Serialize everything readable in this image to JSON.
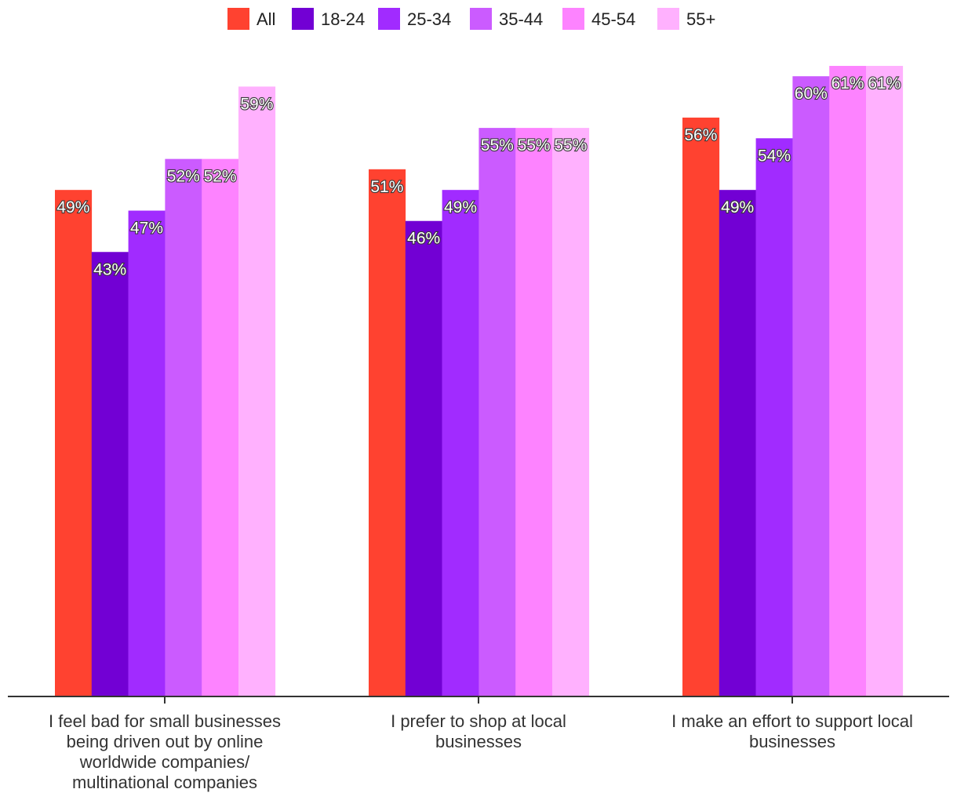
{
  "chart_data": {
    "type": "bar",
    "title": "",
    "xlabel": "",
    "ylabel": "",
    "ylim": [
      0,
      61
    ],
    "legend_position": "top-center",
    "grid": false,
    "categories": [
      [
        "I feel bad for small businesses",
        "being driven out by online",
        "worldwide companies/",
        "multinational companies"
      ],
      [
        "I prefer to shop at local",
        "businesses"
      ],
      [
        "I make an effort to support local",
        "businesses"
      ]
    ],
    "series": [
      {
        "name": "All",
        "color": "#ff4230",
        "values": [
          49,
          51,
          56
        ],
        "labels": [
          "49%",
          "51%",
          "56%"
        ]
      },
      {
        "name": "18-24",
        "color": "#7200d4",
        "values": [
          43,
          46,
          49
        ],
        "labels": [
          "43%",
          "46%",
          "49%"
        ]
      },
      {
        "name": "25-34",
        "color": "#a12bff",
        "values": [
          47,
          49,
          54
        ],
        "labels": [
          "47%",
          "49%",
          "54%"
        ]
      },
      {
        "name": "35-44",
        "color": "#cb5bff",
        "values": [
          52,
          55,
          60
        ],
        "labels": [
          "52%",
          "55%",
          "60%"
        ]
      },
      {
        "name": "45-54",
        "color": "#fd83ff",
        "values": [
          52,
          55,
          61
        ],
        "labels": [
          "52%",
          "55%",
          "61%"
        ]
      },
      {
        "name": "55+",
        "color": "#ffb1fe",
        "values": [
          59,
          55,
          61
        ],
        "labels": [
          "59%",
          "55%",
          "61%"
        ]
      }
    ]
  }
}
